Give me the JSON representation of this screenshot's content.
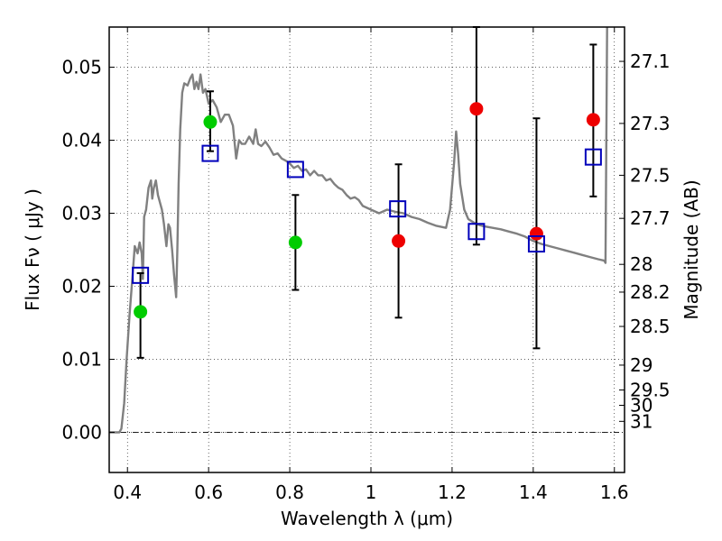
{
  "chart_data": {
    "type": "scatter",
    "xlabel": "Wavelength  λ (μm)",
    "ylabel": "Flux  Fν  ( μJy )",
    "y2label": "Magnitude (AB)",
    "xlim": [
      0.355,
      1.625
    ],
    "ylim": [
      -0.0055,
      0.0555
    ],
    "grid": true,
    "x_ticks": [
      0.4,
      0.6,
      0.8,
      1.0,
      1.2,
      1.4,
      1.6
    ],
    "x_tick_labels": [
      "0.4",
      "0.6",
      "0.8",
      "1",
      "1.2",
      "1.4",
      "1.6"
    ],
    "y_ticks": [
      0.0,
      0.01,
      0.02,
      0.03,
      0.04,
      0.05
    ],
    "y_tick_labels": [
      "0.00",
      "0.01",
      "0.02",
      "0.03",
      "0.04",
      "0.05"
    ],
    "magnitude_ticks": [
      {
        "label": "27.1",
        "flux": 0.0508
      },
      {
        "label": "27.3",
        "flux": 0.0423
      },
      {
        "label": "27.5",
        "flux": 0.0352
      },
      {
        "label": "27.7",
        "flux": 0.0293
      },
      {
        "label": "28",
        "flux": 0.023
      },
      {
        "label": "28.2",
        "flux": 0.0192
      },
      {
        "label": "28.5",
        "flux": 0.0145
      },
      {
        "label": "29",
        "flux": 0.0092
      },
      {
        "label": "29.5",
        "flux": 0.0058
      },
      {
        "label": "30",
        "flux": 0.0037
      },
      {
        "label": "31",
        "flux": 0.0015
      }
    ],
    "model_spectrum": {
      "color": "#808080",
      "points": [
        [
          0.355,
          0.0
        ],
        [
          0.38,
          0.0
        ],
        [
          0.385,
          0.0005
        ],
        [
          0.392,
          0.004
        ],
        [
          0.398,
          0.01
        ],
        [
          0.405,
          0.016
        ],
        [
          0.412,
          0.021
        ],
        [
          0.418,
          0.0255
        ],
        [
          0.425,
          0.0245
        ],
        [
          0.43,
          0.026
        ],
        [
          0.435,
          0.0245
        ],
        [
          0.438,
          0.021
        ],
        [
          0.441,
          0.0295
        ],
        [
          0.446,
          0.0305
        ],
        [
          0.452,
          0.0335
        ],
        [
          0.458,
          0.0345
        ],
        [
          0.461,
          0.032
        ],
        [
          0.465,
          0.0335
        ],
        [
          0.47,
          0.0345
        ],
        [
          0.475,
          0.0325
        ],
        [
          0.48,
          0.0315
        ],
        [
          0.485,
          0.0305
        ],
        [
          0.49,
          0.0285
        ],
        [
          0.496,
          0.0255
        ],
        [
          0.501,
          0.0285
        ],
        [
          0.505,
          0.028
        ],
        [
          0.51,
          0.025
        ],
        [
          0.515,
          0.0215
        ],
        [
          0.52,
          0.0185
        ],
        [
          0.523,
          0.025
        ],
        [
          0.526,
          0.034
        ],
        [
          0.53,
          0.0415
        ],
        [
          0.535,
          0.0465
        ],
        [
          0.54,
          0.0478
        ],
        [
          0.548,
          0.0475
        ],
        [
          0.555,
          0.0485
        ],
        [
          0.56,
          0.049
        ],
        [
          0.565,
          0.047
        ],
        [
          0.57,
          0.048
        ],
        [
          0.575,
          0.047
        ],
        [
          0.58,
          0.049
        ],
        [
          0.586,
          0.0465
        ],
        [
          0.592,
          0.047
        ],
        [
          0.6,
          0.045
        ],
        [
          0.61,
          0.0455
        ],
        [
          0.62,
          0.0445
        ],
        [
          0.63,
          0.0425
        ],
        [
          0.64,
          0.0435
        ],
        [
          0.65,
          0.0435
        ],
        [
          0.66,
          0.042
        ],
        [
          0.668,
          0.0375
        ],
        [
          0.675,
          0.04
        ],
        [
          0.682,
          0.0395
        ],
        [
          0.69,
          0.0395
        ],
        [
          0.7,
          0.0405
        ],
        [
          0.71,
          0.0395
        ],
        [
          0.716,
          0.0415
        ],
        [
          0.722,
          0.0395
        ],
        [
          0.73,
          0.0392
        ],
        [
          0.74,
          0.0398
        ],
        [
          0.75,
          0.039
        ],
        [
          0.76,
          0.038
        ],
        [
          0.77,
          0.0382
        ],
        [
          0.78,
          0.0375
        ],
        [
          0.79,
          0.0372
        ],
        [
          0.8,
          0.0368
        ],
        [
          0.81,
          0.0362
        ],
        [
          0.82,
          0.0365
        ],
        [
          0.83,
          0.0358
        ],
        [
          0.84,
          0.036
        ],
        [
          0.85,
          0.0352
        ],
        [
          0.86,
          0.0358
        ],
        [
          0.87,
          0.0352
        ],
        [
          0.88,
          0.0352
        ],
        [
          0.89,
          0.0345
        ],
        [
          0.9,
          0.0347
        ],
        [
          0.91,
          0.034
        ],
        [
          0.92,
          0.0335
        ],
        [
          0.93,
          0.0332
        ],
        [
          0.94,
          0.0325
        ],
        [
          0.95,
          0.032
        ],
        [
          0.96,
          0.0322
        ],
        [
          0.97,
          0.0318
        ],
        [
          0.98,
          0.031
        ],
        [
          1.0,
          0.0305
        ],
        [
          1.02,
          0.03
        ],
        [
          1.04,
          0.0305
        ],
        [
          1.06,
          0.0302
        ],
        [
          1.08,
          0.03
        ],
        [
          1.1,
          0.0295
        ],
        [
          1.12,
          0.0292
        ],
        [
          1.14,
          0.0287
        ],
        [
          1.16,
          0.0283
        ],
        [
          1.185,
          0.028
        ],
        [
          1.195,
          0.0305
        ],
        [
          1.205,
          0.037
        ],
        [
          1.21,
          0.0412
        ],
        [
          1.215,
          0.038
        ],
        [
          1.22,
          0.034
        ],
        [
          1.23,
          0.0305
        ],
        [
          1.24,
          0.0292
        ],
        [
          1.26,
          0.0285
        ],
        [
          1.28,
          0.0282
        ],
        [
          1.3,
          0.028
        ],
        [
          1.32,
          0.0278
        ],
        [
          1.34,
          0.0275
        ],
        [
          1.36,
          0.0272
        ],
        [
          1.38,
          0.0268
        ],
        [
          1.4,
          0.0262
        ],
        [
          1.42,
          0.0258
        ],
        [
          1.44,
          0.0255
        ],
        [
          1.46,
          0.0252
        ],
        [
          1.48,
          0.0249
        ],
        [
          1.5,
          0.0246
        ],
        [
          1.52,
          0.0243
        ],
        [
          1.54,
          0.024
        ],
        [
          1.56,
          0.0237
        ],
        [
          1.575,
          0.0235
        ],
        [
          1.578,
          0.0232
        ],
        [
          1.582,
          0.0555
        ]
      ]
    },
    "model_bandpass_fluxes": {
      "color": "#0000bb",
      "points": [
        [
          0.432,
          0.0215
        ],
        [
          0.604,
          0.0382
        ],
        [
          0.814,
          0.036
        ],
        [
          1.066,
          0.0306
        ],
        [
          1.26,
          0.0275
        ],
        [
          1.408,
          0.0258
        ],
        [
          1.548,
          0.0377
        ]
      ]
    },
    "observed_fluxes": [
      {
        "x": 0.432,
        "y": 0.0165,
        "err_low": 0.0102,
        "err_high": 0.0218,
        "color": "#00cc00"
      },
      {
        "x": 0.604,
        "y": 0.0425,
        "err_low": 0.0385,
        "err_high": 0.0467,
        "color": "#00cc00"
      },
      {
        "x": 0.814,
        "y": 0.026,
        "err_low": 0.0195,
        "err_high": 0.0325,
        "color": "#00cc00"
      },
      {
        "x": 1.068,
        "y": 0.0262,
        "err_low": 0.0157,
        "err_high": 0.0367,
        "color": "#ee0000"
      },
      {
        "x": 1.26,
        "y": 0.0443,
        "err_low": 0.0257,
        "err_high": 0.0555,
        "color": "#ee0000"
      },
      {
        "x": 1.408,
        "y": 0.0272,
        "err_low": 0.0115,
        "err_high": 0.043,
        "color": "#ee0000"
      },
      {
        "x": 1.548,
        "y": 0.0428,
        "err_low": 0.0323,
        "err_high": 0.0531,
        "color": "#ee0000"
      }
    ]
  }
}
